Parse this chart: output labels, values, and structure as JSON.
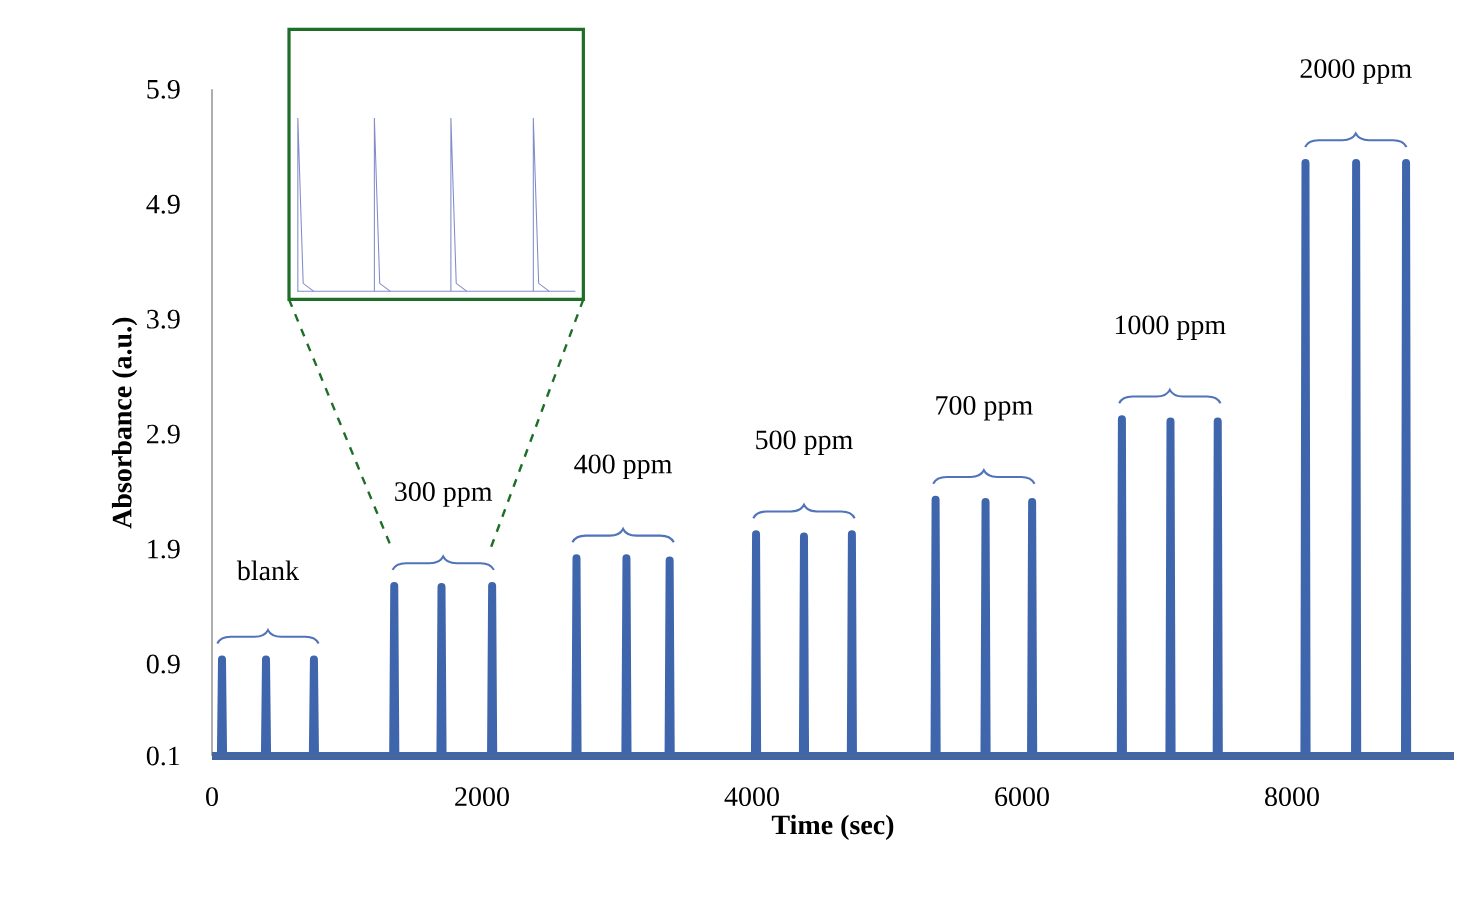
{
  "chart_data": {
    "type": "line",
    "xlabel": "Time (sec)",
    "ylabel": "Absorbance (a.u.)",
    "xlim": [
      0,
      9200
    ],
    "ylim": [
      0.1,
      5.9
    ],
    "xticks": [
      0,
      2000,
      4000,
      6000,
      8000
    ],
    "yticks": [
      0.1,
      0.9,
      1.9,
      2.9,
      3.9,
      4.9,
      5.9
    ],
    "series": [
      {
        "color": "#3f66ad",
        "x": [
          0,
          66,
          74,
          82,
          392,
          400,
          408,
          747,
          755,
          763,
          1342,
          1350,
          1358,
          1692,
          1700,
          1708,
          2067,
          2075,
          2083,
          2692,
          2700,
          2708,
          3062,
          3070,
          3078,
          3382,
          3390,
          3398,
          4022,
          4030,
          4038,
          4377,
          4385,
          4393,
          4732,
          4740,
          4748,
          5352,
          5360,
          5368,
          5722,
          5730,
          5738,
          6067,
          6075,
          6083,
          6732,
          6740,
          6748,
          7092,
          7100,
          7108,
          7442,
          7450,
          7458,
          8092,
          8100,
          8108,
          8467,
          8475,
          8483,
          8837,
          8845,
          8853,
          9200
        ],
        "values": [
          0.1,
          0.1,
          0.94,
          0.1,
          0.1,
          0.94,
          0.1,
          0.1,
          0.94,
          0.1,
          0.1,
          1.58,
          0.1,
          0.1,
          1.57,
          0.1,
          0.1,
          1.58,
          0.1,
          0.1,
          1.82,
          0.1,
          0.1,
          1.82,
          0.1,
          0.1,
          1.8,
          0.1,
          0.1,
          2.03,
          0.1,
          0.1,
          2.01,
          0.1,
          0.1,
          2.03,
          0.1,
          0.1,
          2.33,
          0.1,
          0.1,
          2.31,
          0.1,
          0.1,
          2.31,
          0.1,
          0.1,
          3.03,
          0.1,
          0.1,
          3.01,
          0.1,
          0.1,
          3.01,
          0.1,
          0.1,
          5.26,
          0.1,
          0.1,
          5.26,
          0.1,
          0.1,
          5.26,
          0.1,
          0.1
        ]
      }
    ],
    "annotations": [
      "blank",
      "300 ppm",
      "400 ppm",
      "500 ppm",
      "700 ppm",
      "1000 ppm",
      "2000 ppm"
    ]
  }
}
